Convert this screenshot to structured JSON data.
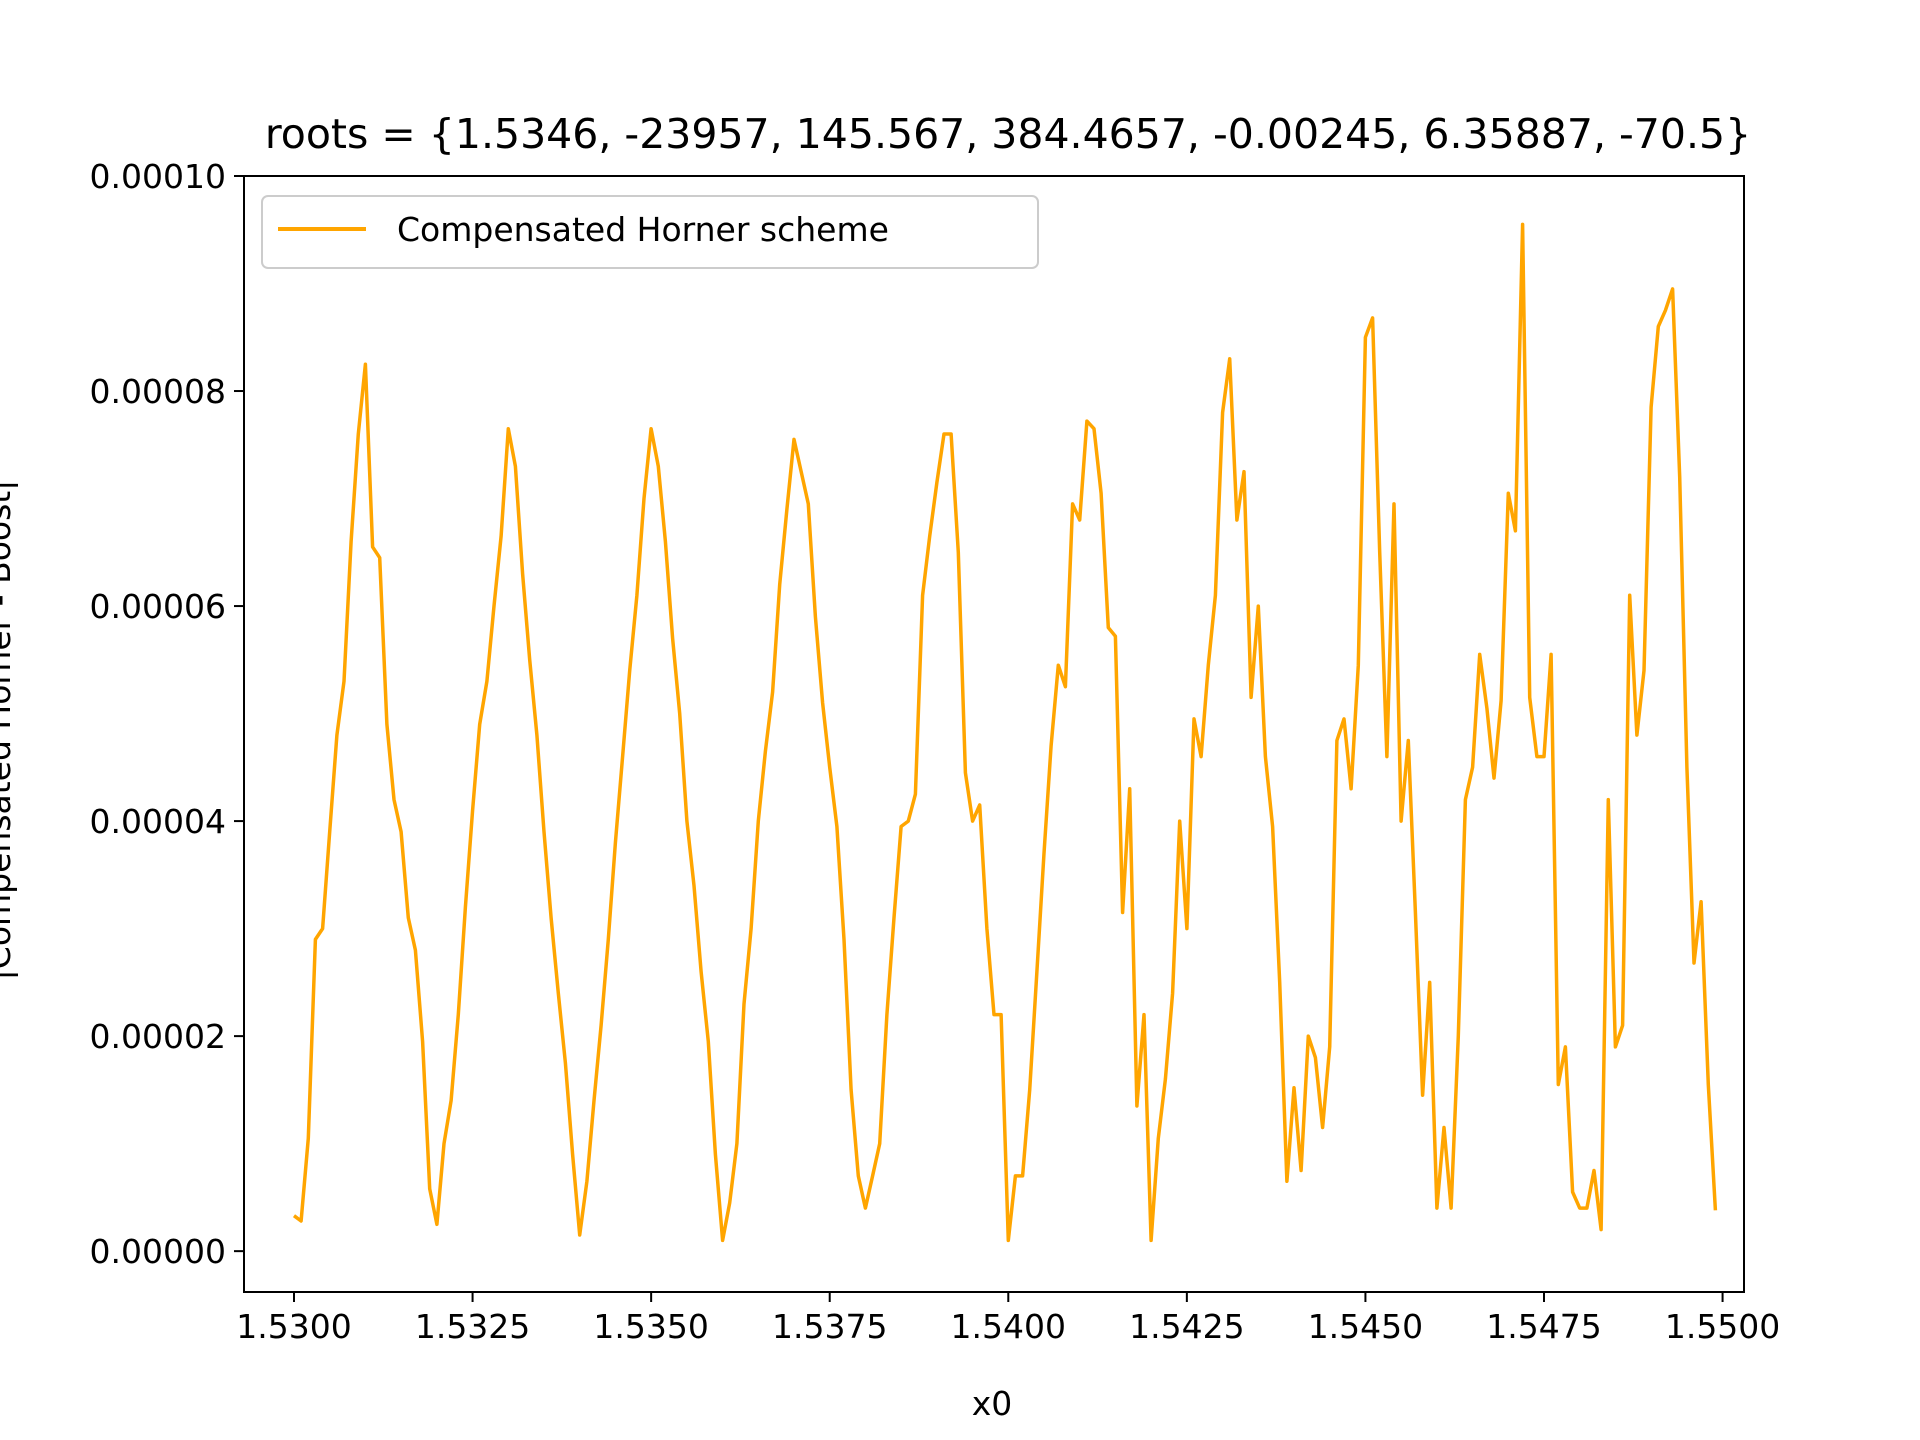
{
  "chart_data": {
    "type": "line",
    "title": "roots = {1.5346, -23957, 145.567, 384.4657, -0.00245, 6.35887, -70.5}",
    "xlabel": "x0",
    "ylabel": "|Compensated Horner - Boost|",
    "xlim": [
      1.5293,
      1.5503
    ],
    "ylim": [
      -3.8e-06,
      0.0001
    ],
    "xticks": [
      "1.5300",
      "1.5325",
      "1.5350",
      "1.5375",
      "1.5400",
      "1.5425",
      "1.5450",
      "1.5475",
      "1.5500"
    ],
    "xtick_values": [
      1.53,
      1.5325,
      1.535,
      1.5375,
      1.54,
      1.5425,
      1.545,
      1.5475,
      1.55
    ],
    "yticks": [
      "0.00000",
      "0.00002",
      "0.00004",
      "0.00006",
      "0.00008",
      "0.00010"
    ],
    "ytick_values": [
      0,
      2e-05,
      4e-05,
      6e-05,
      8e-05,
      0.0001
    ],
    "grid": false,
    "legend_position": "upper left",
    "series": [
      {
        "name": "Compensated Horner scheme",
        "color": "#FFA500",
        "x": [
          1.53,
          1.5301,
          1.5302,
          1.5303,
          1.5304,
          1.5305,
          1.5306,
          1.5307,
          1.5308,
          1.5309,
          1.531,
          1.5311,
          1.5312,
          1.5313,
          1.5314,
          1.5315,
          1.5316,
          1.5317,
          1.5318,
          1.5319,
          1.532,
          1.5321,
          1.5322,
          1.5323,
          1.5324,
          1.5325,
          1.5326,
          1.5327,
          1.5328,
          1.5329,
          1.533,
          1.5331,
          1.5332,
          1.5333,
          1.5334,
          1.5335,
          1.5336,
          1.5337,
          1.5338,
          1.5339,
          1.534,
          1.5341,
          1.5342,
          1.5343,
          1.5344,
          1.5345,
          1.5346,
          1.5347,
          1.5348,
          1.5349,
          1.535,
          1.5351,
          1.5352,
          1.5353,
          1.5354,
          1.5355,
          1.5356,
          1.5357,
          1.5358,
          1.5359,
          1.536,
          1.5361,
          1.5362,
          1.5363,
          1.5364,
          1.5365,
          1.5366,
          1.5367,
          1.5368,
          1.5369,
          1.537,
          1.5372,
          1.5373,
          1.5374,
          1.5375,
          1.5376,
          1.5377,
          1.5378,
          1.5379,
          1.538,
          1.5381,
          1.5382,
          1.5383,
          1.5384,
          1.5385,
          1.5386,
          1.5387,
          1.5388,
          1.5389,
          1.539,
          1.5391,
          1.5392,
          1.5393,
          1.5394,
          1.5395,
          1.5396,
          1.5397,
          1.5398,
          1.5399,
          1.54,
          1.5401,
          1.5402,
          1.5403,
          1.5404,
          1.5405,
          1.5406,
          1.5407,
          1.5408,
          1.5409,
          1.541,
          1.5411,
          1.5412,
          1.5413,
          1.5414,
          1.5415,
          1.5416,
          1.5417,
          1.5418,
          1.5419,
          1.542,
          1.5421,
          1.5422,
          1.5423,
          1.5424,
          1.5425,
          1.5426,
          1.5427,
          1.5428,
          1.5429,
          1.543,
          1.5431,
          1.5432,
          1.5433,
          1.5434,
          1.5435,
          1.5436,
          1.5437,
          1.5438,
          1.5439,
          1.544,
          1.5441,
          1.5442,
          1.5443,
          1.5444,
          1.5445,
          1.5446,
          1.5447,
          1.5448,
          1.5449,
          1.545,
          1.5451,
          1.5452,
          1.5453,
          1.5454,
          1.5455,
          1.5456,
          1.5457,
          1.5458,
          1.5459,
          1.546,
          1.5461,
          1.5462,
          1.5463,
          1.5464,
          1.5465,
          1.5466,
          1.5467,
          1.5468,
          1.5469,
          1.547,
          1.5471,
          1.5472,
          1.5473,
          1.5474,
          1.5475,
          1.5476,
          1.5477,
          1.5478,
          1.5479,
          1.548,
          1.5481,
          1.5482,
          1.5483,
          1.5484,
          1.5485,
          1.5486,
          1.5487,
          1.5488,
          1.5489,
          1.549,
          1.5491,
          1.5492,
          1.5493,
          1.5494,
          1.5495,
          1.5496,
          1.5497,
          1.5498,
          1.5499
        ],
        "y": [
          3.3e-06,
          2.8e-06,
          1.05e-05,
          2.9e-05,
          3e-05,
          3.9e-05,
          4.8e-05,
          5.3e-05,
          6.6e-05,
          7.6e-05,
          8.25e-05,
          6.55e-05,
          6.45e-05,
          4.9e-05,
          4.2e-05,
          3.9e-05,
          3.1e-05,
          2.8e-05,
          1.95e-05,
          5.8e-06,
          2.5e-06,
          1e-05,
          1.4e-05,
          2.2e-05,
          3.2e-05,
          4.1e-05,
          4.9e-05,
          5.3e-05,
          6e-05,
          6.65e-05,
          7.65e-05,
          7.3e-05,
          6.3e-05,
          5.5e-05,
          4.8e-05,
          3.9e-05,
          3.1e-05,
          2.4e-05,
          1.75e-05,
          9e-06,
          1.5e-06,
          6.5e-06,
          1.4e-05,
          2.1e-05,
          2.9e-05,
          3.8e-05,
          4.6e-05,
          5.4e-05,
          6.1e-05,
          7e-05,
          7.65e-05,
          7.3e-05,
          6.6e-05,
          5.7e-05,
          5e-05,
          4e-05,
          3.4e-05,
          2.6e-05,
          1.95e-05,
          9e-06,
          1e-06,
          4.5e-06,
          1e-05,
          2.3e-05,
          3e-05,
          4e-05,
          4.65e-05,
          5.2e-05,
          6.2e-05,
          6.9e-05,
          7.55e-05,
          6.95e-05,
          5.9e-05,
          5.1e-05,
          4.5e-05,
          3.95e-05,
          2.9e-05,
          1.5e-05,
          7e-06,
          4e-06,
          7e-06,
          1e-05,
          2.2e-05,
          3.1e-05,
          3.95e-05,
          4e-05,
          4.25e-05,
          6.1e-05,
          6.65e-05,
          7.15e-05,
          7.6e-05,
          7.6e-05,
          6.5e-05,
          4.45e-05,
          4e-05,
          4.15e-05,
          3e-05,
          2.2e-05,
          2.2e-05,
          1e-06,
          7e-06,
          7e-06,
          1.5e-05,
          2.6e-05,
          3.7e-05,
          4.7e-05,
          5.45e-05,
          5.25e-05,
          6.95e-05,
          6.8e-05,
          7.72e-05,
          7.65e-05,
          7.05e-05,
          5.8e-05,
          5.72e-05,
          3.15e-05,
          4.3e-05,
          1.35e-05,
          2.2e-05,
          1e-06,
          1.05e-05,
          1.6e-05,
          2.4e-05,
          4e-05,
          3e-05,
          4.95e-05,
          4.6e-05,
          5.45e-05,
          6.1e-05,
          7.8e-05,
          8.3e-05,
          6.8e-05,
          7.25e-05,
          5.15e-05,
          6e-05,
          4.6e-05,
          3.95e-05,
          2.5e-05,
          6.5e-06,
          1.52e-05,
          7.5e-06,
          2e-05,
          1.8e-05,
          1.15e-05,
          1.9e-05,
          4.75e-05,
          4.95e-05,
          4.3e-05,
          5.45e-05,
          8.5e-05,
          8.68e-05,
          6.5e-05,
          4.6e-05,
          6.95e-05,
          4e-05,
          4.75e-05,
          3.15e-05,
          1.45e-05,
          2.5e-05,
          4e-06,
          1.15e-05,
          4e-06,
          2e-05,
          4.2e-05,
          4.5e-05,
          5.55e-05,
          5.05e-05,
          4.4e-05,
          5.12e-05,
          7.05e-05,
          6.7e-05,
          9.55e-05,
          5.15e-05,
          4.6e-05,
          4.6e-05,
          5.55e-05,
          1.55e-05,
          1.9e-05,
          5.5e-06,
          4e-06,
          4e-06,
          7.5e-06,
          2e-06,
          4.2e-05,
          1.9e-05,
          2.1e-05,
          6.1e-05,
          4.8e-05,
          5.4e-05,
          7.85e-05,
          8.6e-05,
          8.75e-05,
          8.95e-05,
          7.2e-05,
          4.5e-05,
          2.68e-05,
          3.25e-05,
          1.55e-05,
          3.8e-06
        ]
      }
    ]
  }
}
